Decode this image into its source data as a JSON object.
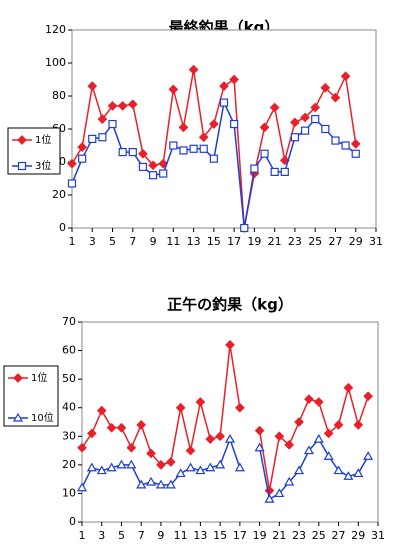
{
  "chart_data": [
    {
      "type": "line",
      "title": "最終釣果（kg）",
      "x": [
        1,
        2,
        3,
        4,
        5,
        6,
        7,
        8,
        9,
        10,
        11,
        12,
        13,
        14,
        15,
        16,
        17,
        18,
        19,
        20,
        21,
        22,
        23,
        24,
        25,
        26,
        27,
        28,
        29
      ],
      "xlim": [
        1,
        31
      ],
      "xticks": [
        1,
        3,
        5,
        7,
        9,
        11,
        13,
        15,
        17,
        19,
        21,
        23,
        25,
        27,
        29,
        31
      ],
      "ylim": [
        0,
        120
      ],
      "yticks": [
        0,
        20,
        40,
        60,
        80,
        100,
        120
      ],
      "legend": "left",
      "series": [
        {
          "name": "1位",
          "color": "#e8202a",
          "marker": "diamond",
          "values": [
            39,
            49,
            86,
            66,
            74,
            74,
            75,
            45,
            38,
            39,
            84,
            61,
            96,
            55,
            63,
            86,
            90,
            0,
            33,
            61,
            73,
            41,
            64,
            67,
            73,
            85,
            79,
            92,
            51
          ]
        },
        {
          "name": "3位",
          "color": "#1f3fd0",
          "marker": "square",
          "values": [
            27,
            42,
            54,
            55,
            63,
            46,
            46,
            37,
            32,
            33,
            50,
            47,
            48,
            48,
            42,
            76,
            63,
            0,
            36,
            45,
            34,
            34,
            55,
            59,
            66,
            60,
            53,
            50,
            45
          ]
        }
      ]
    },
    {
      "type": "line",
      "title": "正午の釣果（kg）",
      "x": [
        1,
        2,
        3,
        4,
        5,
        6,
        7,
        8,
        9,
        10,
        11,
        12,
        13,
        14,
        15,
        16,
        17,
        18,
        19,
        20,
        21,
        22,
        23,
        24,
        25,
        26,
        27,
        28,
        29,
        30
      ],
      "xlim": [
        1,
        31
      ],
      "xticks": [
        1,
        3,
        5,
        7,
        9,
        11,
        13,
        15,
        17,
        19,
        21,
        23,
        25,
        27,
        29,
        31
      ],
      "ylim": [
        0,
        70
      ],
      "yticks": [
        0,
        10,
        20,
        30,
        40,
        50,
        60,
        70
      ],
      "legend": "left",
      "series": [
        {
          "name": "1位",
          "color": "#e8202a",
          "marker": "diamond",
          "values": [
            26,
            31,
            39,
            33,
            33,
            26,
            34,
            24,
            20,
            21,
            40,
            25,
            42,
            29,
            30,
            62,
            40,
            null,
            32,
            11,
            30,
            27,
            35,
            43,
            42,
            31,
            34,
            47,
            34,
            44
          ]
        },
        {
          "name": "10位",
          "color": "#1f3fd0",
          "marker": "triangle",
          "values": [
            12,
            19,
            18,
            19,
            20,
            20,
            13,
            14,
            13,
            13,
            17,
            19,
            18,
            19,
            20,
            29,
            19,
            null,
            26,
            8,
            10,
            14,
            18,
            25,
            29,
            23,
            18,
            16,
            17,
            23
          ]
        }
      ]
    }
  ]
}
